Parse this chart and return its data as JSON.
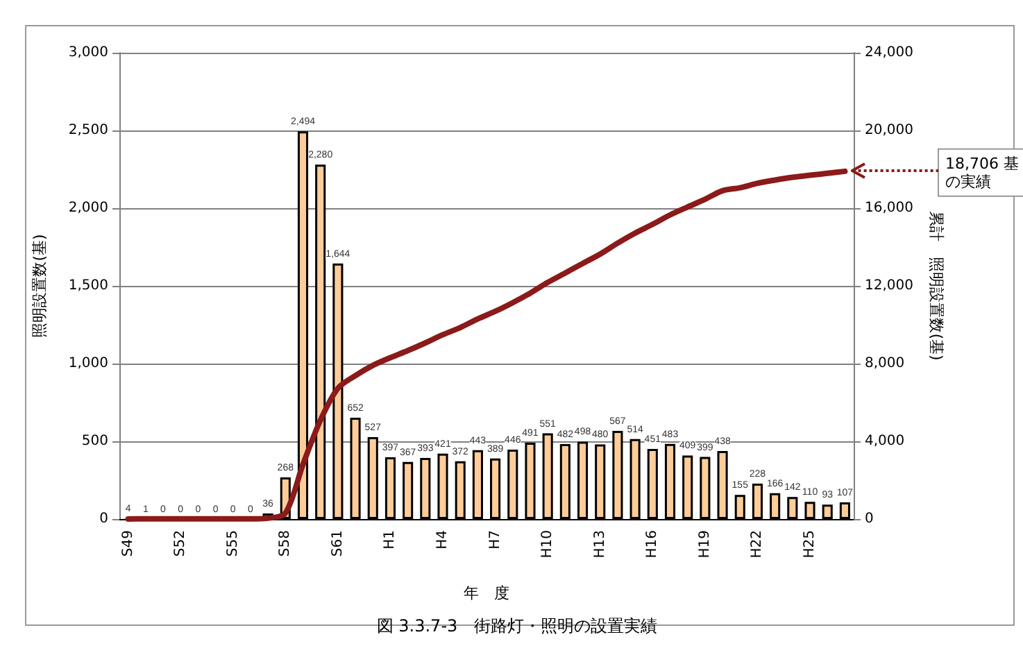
{
  "chart_data": {
    "type": "bar",
    "title": "図 3.3.7-3　街路灯・照明の設置実績",
    "xlabel": "年　度",
    "ylabel": "照明設置数(基)",
    "y2label": "累計　照明設置数(基)",
    "categories": [
      "S49",
      null,
      null,
      "S52",
      null,
      null,
      "S55",
      null,
      null,
      "S58",
      null,
      null,
      "S61",
      null,
      null,
      "H1",
      null,
      null,
      "H4",
      null,
      null,
      "H7",
      null,
      null,
      "H10",
      null,
      null,
      "H13",
      null,
      null,
      "H16",
      null,
      null,
      "H19",
      null,
      null,
      "H22",
      null,
      null,
      "H25",
      null,
      null
    ],
    "series": [
      {
        "type": "bar",
        "color": "#ffcc99",
        "values": [
          4,
          1,
          0,
          0,
          0,
          0,
          0,
          0,
          36,
          268,
          2494,
          2280,
          1644,
          652,
          527,
          397,
          367,
          393,
          421,
          372,
          443,
          389,
          446,
          491,
          551,
          482,
          498,
          480,
          567,
          514,
          451,
          483,
          409,
          399,
          438,
          155,
          228,
          166,
          142,
          110,
          93,
          107
        ],
        "value_labels": [
          "4",
          "1",
          "0",
          "0",
          "0",
          "0",
          "0",
          "0",
          "36",
          "268",
          "2,494",
          "2,280",
          "1,644",
          "652",
          "527",
          "397",
          "367",
          "393",
          "421",
          "372",
          "443",
          "389",
          "446",
          "491",
          "551",
          "482",
          "498",
          "480",
          "567",
          "514",
          "451",
          "483",
          "409",
          "399",
          "438",
          "155",
          "228",
          "166",
          "142",
          "110",
          "93",
          "107"
        ]
      },
      {
        "type": "line",
        "axis": "y2",
        "color": "#8b1a1a",
        "values": [
          4,
          5,
          5,
          5,
          5,
          5,
          5,
          5,
          41,
          309,
          2803,
          5083,
          6727,
          7379,
          7906,
          8303,
          8670,
          9063,
          9484,
          9856,
          10299,
          10688,
          11134,
          11625,
          12176,
          12658,
          13156,
          13636,
          14203,
          14717,
          15168,
          15651,
          16060,
          16459,
          16897,
          17052,
          17280,
          17446,
          17588,
          17698,
          17791,
          17898
        ]
      }
    ],
    "ylim": [
      0,
      3000
    ],
    "yticks": [
      0,
      {
        "value": 500,
        "label": "500"
      },
      {
        "value": 1000,
        "label": "1,000"
      },
      {
        "value": 1500,
        "label": "1,500"
      },
      {
        "value": 2000,
        "label": "2,000"
      },
      {
        "value": 2500,
        "label": "2,500"
      },
      {
        "value": 3000,
        "label": "3,000"
      }
    ],
    "y2lim": [
      0,
      24000
    ],
    "y2ticks": [
      0,
      {
        "value": 4000,
        "label": "4,000"
      },
      {
        "value": 8000,
        "label": "8,000"
      },
      {
        "value": 12000,
        "label": "12,000"
      },
      {
        "value": 16000,
        "label": "16,000"
      },
      {
        "value": 20000,
        "label": "20,000"
      },
      {
        "value": 24000,
        "label": "24,000"
      }
    ],
    "grid": "y",
    "marker": "none",
    "line_style": "solid",
    "annotations": [
      "18,706 基の実績"
    ]
  }
}
